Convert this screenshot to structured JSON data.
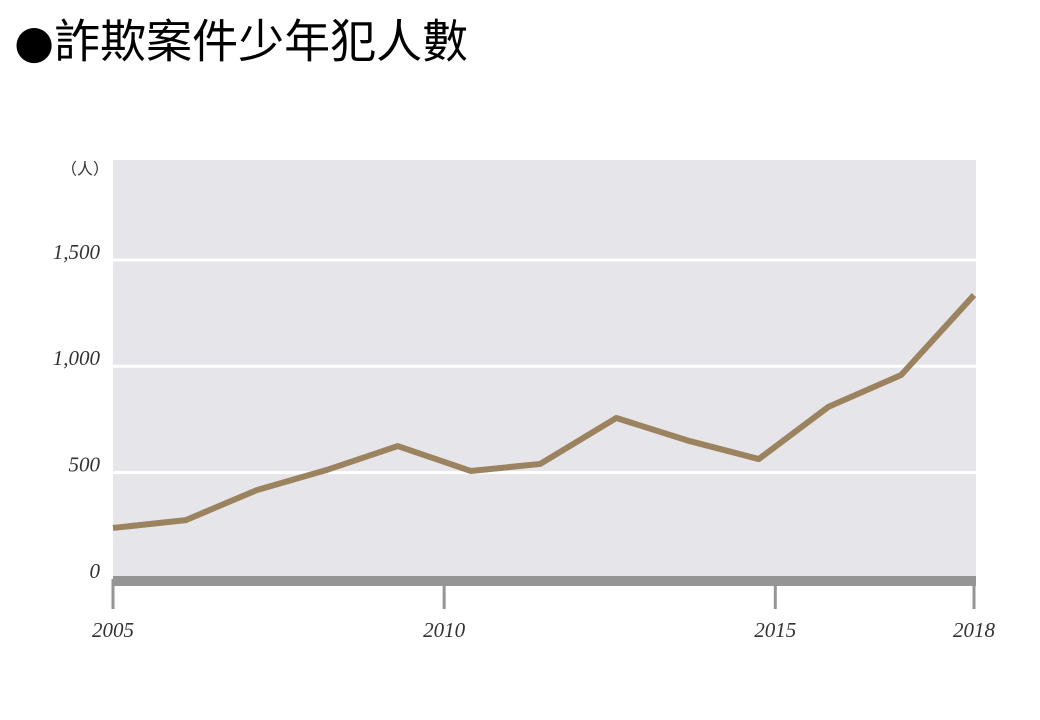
{
  "chart_data": {
    "type": "line",
    "title": "●詐欺案件少年犯人數",
    "y_unit": "（人）",
    "x": [
      2005,
      2006.1,
      2007.17,
      2008.25,
      2009.3,
      2010.4,
      2011.45,
      2012.6,
      2013.7,
      2014.75,
      2015.8,
      2016.9,
      2018
    ],
    "series": [
      {
        "name": "詐欺案件少年犯人數",
        "color": "#9c8360",
        "values": [
          240,
          277,
          418,
          515,
          625,
          508,
          541,
          757,
          649,
          564,
          809,
          959,
          1335
        ]
      }
    ],
    "xlim": [
      2005,
      2018
    ],
    "xticks": [
      2005,
      2010,
      2015,
      2018
    ],
    "ylim": [
      0,
      1970
    ],
    "yticks": [
      0,
      500,
      {
        "value": 1000,
        "label": "1,000"
      },
      {
        "value": 1500,
        "label": "1,500"
      }
    ],
    "grid": true
  }
}
